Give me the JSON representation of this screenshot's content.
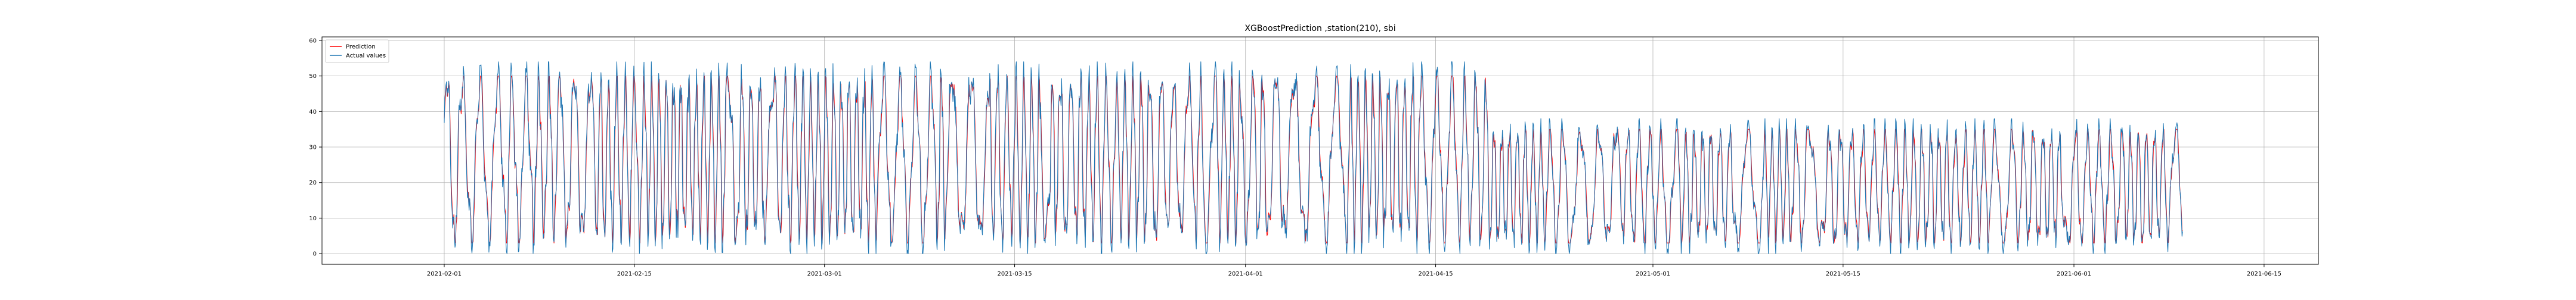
{
  "chart_data": {
    "type": "line",
    "title": "XGBoostPrediction ,station(210), sbi",
    "xlabel": "",
    "ylabel": "",
    "x_axis_type": "date",
    "xlim": [
      "2021-01-23",
      "2021-06-19"
    ],
    "ylim": [
      -3,
      61
    ],
    "x_ticks": [
      "2021-02-01",
      "2021-02-15",
      "2021-03-01",
      "2021-03-15",
      "2021-04-01",
      "2021-04-15",
      "2021-05-01",
      "2021-05-15",
      "2021-06-01",
      "2021-06-15"
    ],
    "y_ticks": [
      0,
      10,
      20,
      30,
      40,
      50,
      60
    ],
    "grid": true,
    "legend_position": "top-left",
    "x_range": [
      "2021-02-01",
      "2021-06-09"
    ],
    "sampling": "hourly",
    "series": [
      {
        "name": "Prediction",
        "color": "#ff0000",
        "segments": [
          {
            "from": "2021-02-01",
            "to": "2021-04-19",
            "min": 3,
            "max": 50
          },
          {
            "from": "2021-04-19",
            "to": "2021-06-09",
            "min": 3,
            "max": 35
          }
        ]
      },
      {
        "name": "Actual values",
        "color": "#1f77b4",
        "segments": [
          {
            "from": "2021-02-01",
            "to": "2021-04-19",
            "min": 0,
            "max": 54
          },
          {
            "from": "2021-04-19",
            "to": "2021-06-09",
            "min": 0,
            "max": 38
          }
        ]
      }
    ]
  }
}
